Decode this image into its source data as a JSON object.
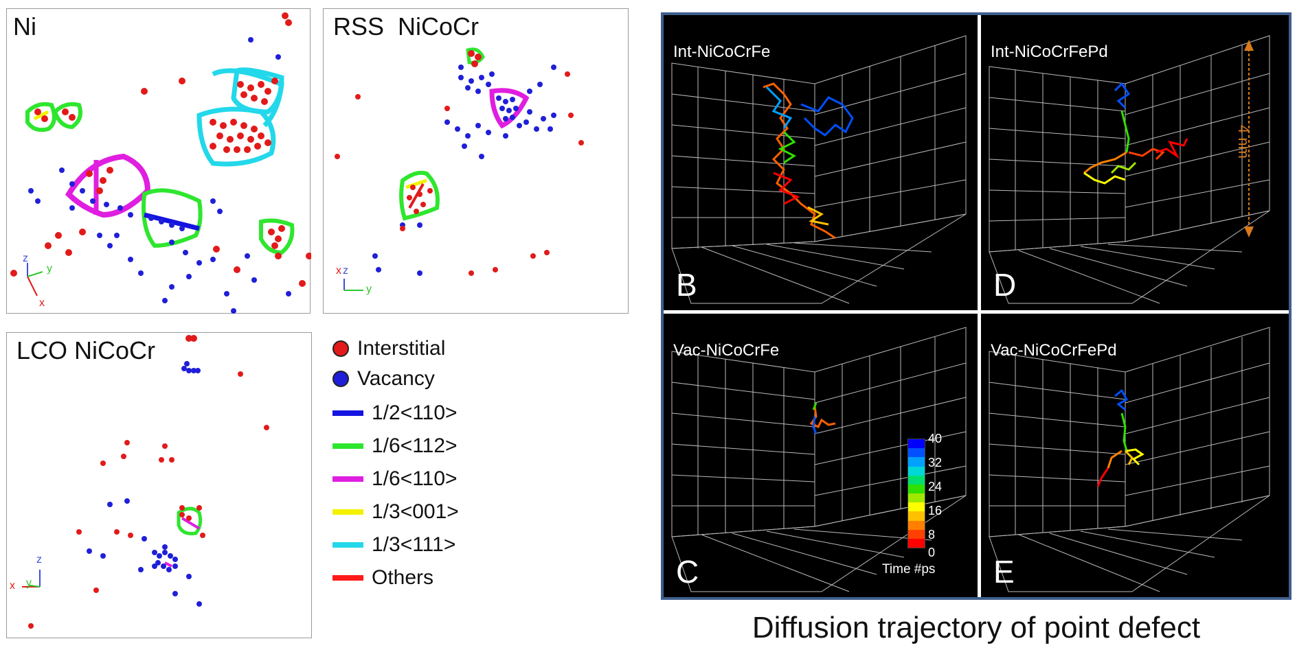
{
  "colors": {
    "interstitial": "#e21a1a",
    "vacancy": "#1f1fd8",
    "loop_110_half": "#1414e0",
    "loop_112": "#2ee62e",
    "loop_110_sixth": "#e01ee0",
    "loop_001": "#f2f200",
    "loop_111": "#22d8ea",
    "others": "#ff1a1a",
    "frame_border": "#3e5f8d",
    "scale_arrow": "#d8791c"
  },
  "panels": {
    "ni": {
      "title": "Ni",
      "axes": {
        "z": "z",
        "y": "y",
        "x": "x"
      }
    },
    "rss": {
      "title": "RSS  NiCoCr",
      "axes": {
        "x": "x",
        "z": "z",
        "y": "y"
      }
    },
    "lco": {
      "title": "LCO NiCoCr",
      "axes": {
        "z": "z",
        "x": "x",
        "y": "y"
      }
    }
  },
  "legend": {
    "items": [
      {
        "kind": "dot",
        "label": "Interstitial",
        "color_key": "interstitial"
      },
      {
        "kind": "dot",
        "label": "Vacancy",
        "color_key": "vacancy"
      },
      {
        "kind": "line",
        "label": "1/2<110>",
        "color_key": "loop_110_half"
      },
      {
        "kind": "line",
        "label": "1/6<112>",
        "color_key": "loop_112"
      },
      {
        "kind": "line",
        "label": "1/6<110>",
        "color_key": "loop_110_sixth"
      },
      {
        "kind": "line",
        "label": "1/3<001>",
        "color_key": "loop_001"
      },
      {
        "kind": "line",
        "label": "1/3<111>",
        "color_key": "loop_111"
      },
      {
        "kind": "line",
        "label": "Others",
        "color_key": "others"
      }
    ]
  },
  "trajectories": {
    "b": {
      "title": "Int-NiCoCrFe",
      "letter": "B"
    },
    "d": {
      "title": "Int-NiCoCrFePd",
      "letter": "D",
      "scale_label": "4 nm"
    },
    "c": {
      "title": "Vac-NiCoCrFe",
      "letter": "C"
    },
    "e": {
      "title": "Vac-NiCoCrFePd",
      "letter": "E"
    },
    "colorbar": {
      "ticks": [
        "40",
        "32",
        "24",
        "16",
        "8",
        "0"
      ],
      "label": "Time #ps",
      "colors": [
        "#0000ff",
        "#0050ff",
        "#00a0ff",
        "#00d8d8",
        "#00e070",
        "#30e000",
        "#a0e800",
        "#ffff00",
        "#ffc000",
        "#ff8000",
        "#ff4000",
        "#ff0000"
      ]
    }
  },
  "caption": "Diffusion trajectory of point defect"
}
